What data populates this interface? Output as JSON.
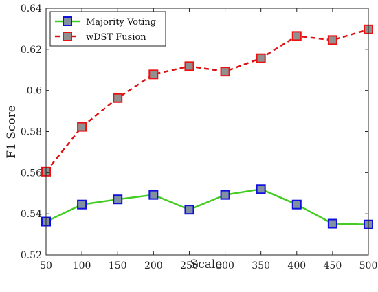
{
  "chart_data": {
    "type": "line",
    "xlabel": "Scale",
    "ylabel": "F1 Score",
    "x": [
      50,
      100,
      150,
      200,
      250,
      300,
      350,
      400,
      450,
      500
    ],
    "xticks": [
      "50",
      "100",
      "150",
      "200",
      "250",
      "300",
      "350",
      "400",
      "450",
      "500"
    ],
    "yticks": [
      "0.52",
      "0.54",
      "0.56",
      "0.58",
      "0.6",
      "0.62",
      "0.64"
    ],
    "xlim": [
      50,
      500
    ],
    "ylim": [
      0.52,
      0.64
    ],
    "grid": false,
    "legend_position": "top-left",
    "series": [
      {
        "name": "Majority Voting",
        "line_color": "#44cc22",
        "line_style": "solid",
        "marker_fill": "#8090a0",
        "marker_edge": "#1010dd",
        "values": [
          0.5362,
          0.5445,
          0.547,
          0.5492,
          0.542,
          0.5492,
          0.552,
          0.5445,
          0.5352,
          0.5348
        ]
      },
      {
        "name": "wDST Fusion",
        "line_color": "#dd1111",
        "line_style": "dashed",
        "marker_fill": "#909090",
        "marker_edge": "#ee1111",
        "values": [
          0.5605,
          0.5823,
          0.5963,
          0.6078,
          0.6118,
          0.6092,
          0.6157,
          0.6265,
          0.6245,
          0.6297
        ]
      }
    ]
  }
}
